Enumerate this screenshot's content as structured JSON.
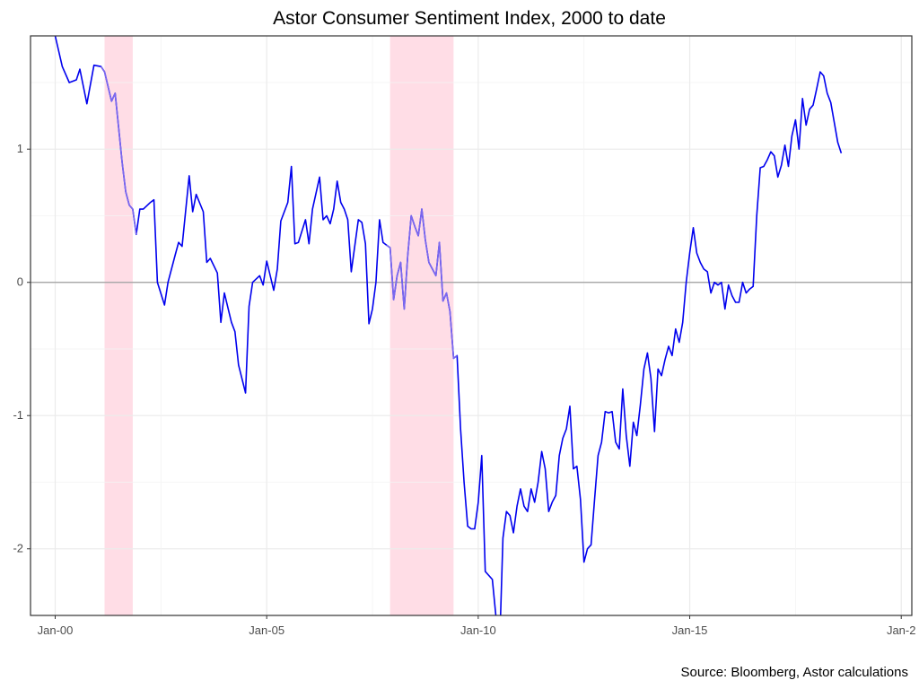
{
  "chart_data": {
    "type": "line",
    "title": "Astor Consumer Sentiment Index, 2000 to date",
    "caption": "Source: Bloomberg, Astor calculations",
    "xlabel": "",
    "ylabel": "",
    "xlim": [
      "1999-06",
      "2020-04"
    ],
    "ylim": [
      -2.5,
      1.85
    ],
    "x_ticks": [
      {
        "date": "2000-01",
        "label": "Jan-00"
      },
      {
        "date": "2005-01",
        "label": "Jan-05"
      },
      {
        "date": "2010-01",
        "label": "Jan-10"
      },
      {
        "date": "2015-01",
        "label": "Jan-15"
      },
      {
        "date": "2020-01",
        "label": "Jan-2"
      }
    ],
    "y_ticks": [
      -2,
      -1,
      0,
      1
    ],
    "grid": true,
    "reference_line_y": 0,
    "colors": {
      "line": "#0000ee",
      "recession_line": "#7b68ee",
      "recession_band": "#ffdde6",
      "zero_line": "#9e9e9e",
      "grid": "#ebebeb",
      "axis": "#333333"
    },
    "recessions": [
      {
        "start": "2001-03",
        "end": "2001-11"
      },
      {
        "start": "2007-12",
        "end": "2009-06"
      }
    ],
    "series": [
      {
        "points": [
          [
            "2000-01",
            1.85
          ],
          [
            "2000-03",
            1.62
          ],
          [
            "2000-05",
            1.5
          ],
          [
            "2000-07",
            1.52
          ],
          [
            "2000-08",
            1.6
          ],
          [
            "2000-10",
            1.34
          ],
          [
            "2000-12",
            1.63
          ],
          [
            "2001-02",
            1.62
          ],
          [
            "2001-03",
            1.58
          ],
          [
            "2001-05",
            1.36
          ],
          [
            "2001-06",
            1.42
          ],
          [
            "2001-08",
            0.9
          ],
          [
            "2001-09",
            0.68
          ],
          [
            "2001-10",
            0.58
          ],
          [
            "2001-11",
            0.55
          ],
          [
            "2001-12",
            0.36
          ],
          [
            "2002-01",
            0.55
          ],
          [
            "2002-02",
            0.55
          ],
          [
            "2002-04",
            0.6
          ],
          [
            "2002-05",
            0.62
          ],
          [
            "2002-06",
            0.0
          ],
          [
            "2002-08",
            -0.17
          ],
          [
            "2002-09",
            0.0
          ],
          [
            "2002-11",
            0.2
          ],
          [
            "2002-12",
            0.3
          ],
          [
            "2003-01",
            0.27
          ],
          [
            "2003-03",
            0.8
          ],
          [
            "2003-04",
            0.53
          ],
          [
            "2003-05",
            0.66
          ],
          [
            "2003-07",
            0.53
          ],
          [
            "2003-08",
            0.15
          ],
          [
            "2003-09",
            0.18
          ],
          [
            "2003-11",
            0.07
          ],
          [
            "2003-12",
            -0.3
          ],
          [
            "2004-01",
            -0.08
          ],
          [
            "2004-03",
            -0.3
          ],
          [
            "2004-04",
            -0.37
          ],
          [
            "2004-05",
            -0.62
          ],
          [
            "2004-07",
            -0.83
          ],
          [
            "2004-08",
            -0.18
          ],
          [
            "2004-09",
            0.0
          ],
          [
            "2004-11",
            0.05
          ],
          [
            "2004-12",
            -0.02
          ],
          [
            "2005-01",
            0.16
          ],
          [
            "2005-03",
            -0.06
          ],
          [
            "2005-04",
            0.1
          ],
          [
            "2005-05",
            0.46
          ],
          [
            "2005-07",
            0.6
          ],
          [
            "2005-08",
            0.87
          ],
          [
            "2005-09",
            0.29
          ],
          [
            "2005-10",
            0.3
          ],
          [
            "2005-12",
            0.47
          ],
          [
            "2006-01",
            0.29
          ],
          [
            "2006-02",
            0.55
          ],
          [
            "2006-04",
            0.79
          ],
          [
            "2006-05",
            0.47
          ],
          [
            "2006-06",
            0.5
          ],
          [
            "2006-07",
            0.44
          ],
          [
            "2006-08",
            0.55
          ],
          [
            "2006-09",
            0.76
          ],
          [
            "2006-10",
            0.6
          ],
          [
            "2006-11",
            0.55
          ],
          [
            "2006-12",
            0.47
          ],
          [
            "2007-01",
            0.08
          ],
          [
            "2007-03",
            0.47
          ],
          [
            "2007-04",
            0.45
          ],
          [
            "2007-05",
            0.29
          ],
          [
            "2007-06",
            -0.31
          ],
          [
            "2007-07",
            -0.2
          ],
          [
            "2007-08",
            0.0
          ],
          [
            "2007-09",
            0.47
          ],
          [
            "2007-10",
            0.3
          ],
          [
            "2007-11",
            0.28
          ],
          [
            "2007-12",
            0.26
          ],
          [
            "2008-01",
            -0.13
          ],
          [
            "2008-02",
            0.05
          ],
          [
            "2008-03",
            0.15
          ],
          [
            "2008-04",
            -0.2
          ],
          [
            "2008-05",
            0.2
          ],
          [
            "2008-06",
            0.5
          ],
          [
            "2008-07",
            0.42
          ],
          [
            "2008-08",
            0.35
          ],
          [
            "2008-09",
            0.55
          ],
          [
            "2008-10",
            0.32
          ],
          [
            "2008-11",
            0.15
          ],
          [
            "2008-12",
            0.1
          ],
          [
            "2009-01",
            0.05
          ],
          [
            "2009-02",
            0.3
          ],
          [
            "2009-03",
            -0.14
          ],
          [
            "2009-04",
            -0.08
          ],
          [
            "2009-05",
            -0.22
          ],
          [
            "2009-06",
            -0.57
          ],
          [
            "2009-07",
            -0.55
          ],
          [
            "2009-08",
            -1.1
          ],
          [
            "2009-09",
            -1.5
          ],
          [
            "2009-10",
            -1.83
          ],
          [
            "2009-11",
            -1.85
          ],
          [
            "2009-12",
            -1.85
          ],
          [
            "2010-01",
            -1.65
          ],
          [
            "2010-02",
            -1.3
          ],
          [
            "2010-03",
            -2.17
          ],
          [
            "2010-04",
            -2.2
          ],
          [
            "2010-05",
            -2.23
          ],
          [
            "2010-06",
            -2.5
          ],
          [
            "2010-07",
            -2.8
          ],
          [
            "2010-08",
            -1.92
          ],
          [
            "2010-09",
            -1.72
          ],
          [
            "2010-10",
            -1.75
          ],
          [
            "2010-11",
            -1.88
          ],
          [
            "2010-12",
            -1.68
          ],
          [
            "2011-01",
            -1.55
          ],
          [
            "2011-02",
            -1.68
          ],
          [
            "2011-03",
            -1.72
          ],
          [
            "2011-04",
            -1.55
          ],
          [
            "2011-05",
            -1.65
          ],
          [
            "2011-06",
            -1.5
          ],
          [
            "2011-07",
            -1.27
          ],
          [
            "2011-08",
            -1.4
          ],
          [
            "2011-09",
            -1.72
          ],
          [
            "2011-10",
            -1.65
          ],
          [
            "2011-11",
            -1.6
          ],
          [
            "2011-12",
            -1.3
          ],
          [
            "2012-01",
            -1.17
          ],
          [
            "2012-02",
            -1.1
          ],
          [
            "2012-03",
            -0.93
          ],
          [
            "2012-04",
            -1.4
          ],
          [
            "2012-05",
            -1.38
          ],
          [
            "2012-06",
            -1.63
          ],
          [
            "2012-07",
            -2.1
          ],
          [
            "2012-08",
            -2.0
          ],
          [
            "2012-09",
            -1.97
          ],
          [
            "2012-10",
            -1.63
          ],
          [
            "2012-11",
            -1.3
          ],
          [
            "2012-12",
            -1.2
          ],
          [
            "2013-01",
            -0.97
          ],
          [
            "2013-02",
            -0.98
          ],
          [
            "2013-03",
            -0.97
          ],
          [
            "2013-04",
            -1.2
          ],
          [
            "2013-05",
            -1.25
          ],
          [
            "2013-06",
            -0.8
          ],
          [
            "2013-07",
            -1.15
          ],
          [
            "2013-08",
            -1.38
          ],
          [
            "2013-09",
            -1.05
          ],
          [
            "2013-10",
            -1.15
          ],
          [
            "2013-11",
            -0.92
          ],
          [
            "2013-12",
            -0.65
          ],
          [
            "2014-01",
            -0.53
          ],
          [
            "2014-02",
            -0.72
          ],
          [
            "2014-03",
            -1.12
          ],
          [
            "2014-04",
            -0.65
          ],
          [
            "2014-05",
            -0.7
          ],
          [
            "2014-06",
            -0.58
          ],
          [
            "2014-07",
            -0.48
          ],
          [
            "2014-08",
            -0.55
          ],
          [
            "2014-09",
            -0.35
          ],
          [
            "2014-10",
            -0.45
          ],
          [
            "2014-11",
            -0.3
          ],
          [
            "2014-12",
            0.0
          ],
          [
            "2015-01",
            0.22
          ],
          [
            "2015-02",
            0.41
          ],
          [
            "2015-03",
            0.22
          ],
          [
            "2015-04",
            0.15
          ],
          [
            "2015-05",
            0.1
          ],
          [
            "2015-06",
            0.08
          ],
          [
            "2015-07",
            -0.08
          ],
          [
            "2015-08",
            0.0
          ],
          [
            "2015-09",
            -0.02
          ],
          [
            "2015-10",
            0.0
          ],
          [
            "2015-11",
            -0.2
          ],
          [
            "2015-12",
            -0.02
          ],
          [
            "2016-01",
            -0.1
          ],
          [
            "2016-02",
            -0.15
          ],
          [
            "2016-03",
            -0.15
          ],
          [
            "2016-04",
            0.0
          ],
          [
            "2016-05",
            -0.08
          ],
          [
            "2016-06",
            -0.05
          ],
          [
            "2016-07",
            -0.03
          ],
          [
            "2016-08",
            0.5
          ],
          [
            "2016-09",
            0.86
          ],
          [
            "2016-10",
            0.87
          ],
          [
            "2016-11",
            0.92
          ],
          [
            "2016-12",
            0.98
          ],
          [
            "2017-01",
            0.95
          ],
          [
            "2017-02",
            0.79
          ],
          [
            "2017-03",
            0.88
          ],
          [
            "2017-04",
            1.03
          ],
          [
            "2017-05",
            0.87
          ],
          [
            "2017-06",
            1.1
          ],
          [
            "2017-07",
            1.22
          ],
          [
            "2017-08",
            1.0
          ],
          [
            "2017-09",
            1.38
          ],
          [
            "2017-10",
            1.18
          ],
          [
            "2017-11",
            1.3
          ],
          [
            "2017-12",
            1.33
          ],
          [
            "2018-01",
            1.45
          ],
          [
            "2018-02",
            1.58
          ],
          [
            "2018-03",
            1.55
          ],
          [
            "2018-04",
            1.42
          ],
          [
            "2018-05",
            1.35
          ],
          [
            "2018-06",
            1.2
          ],
          [
            "2018-07",
            1.05
          ],
          [
            "2018-08",
            0.97
          ]
        ]
      }
    ]
  }
}
